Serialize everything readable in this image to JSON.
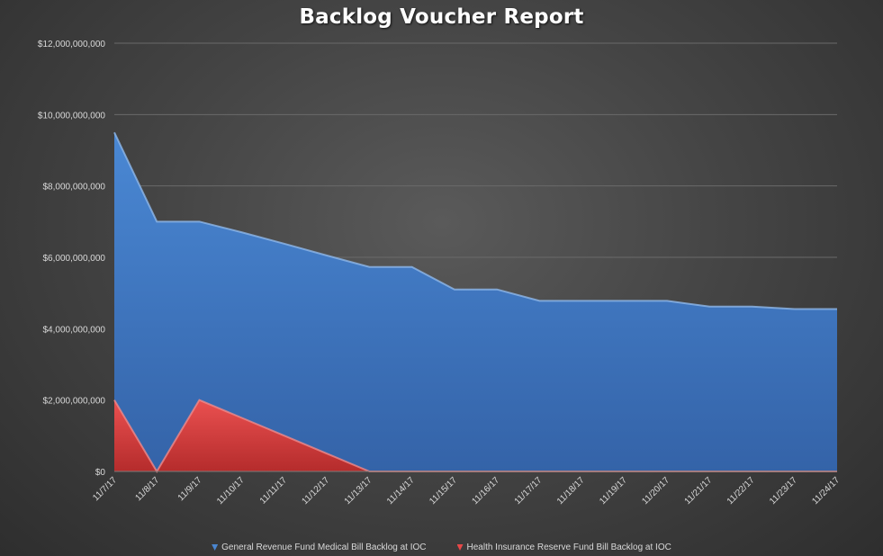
{
  "colors": {
    "series1": "#4a86d0",
    "series1_dark": "#3566ad",
    "series2": "#e84848",
    "series2_dark": "#b63030",
    "grid": "#6a6a6a",
    "text": "#d9d9d9"
  },
  "chart_data": {
    "type": "area",
    "title": "Backlog Voucher Report",
    "xlabel": "",
    "ylabel": "",
    "x": [
      "11/7/17",
      "11/8/17",
      "11/9/17",
      "11/10/17",
      "11/11/17",
      "11/12/17",
      "11/13/17",
      "11/14/17",
      "11/15/17",
      "11/16/17",
      "11/17/17",
      "11/18/17",
      "11/19/17",
      "11/20/17",
      "11/21/17",
      "11/22/17",
      "11/23/17",
      "11/24/17"
    ],
    "ylim": [
      0,
      12000000000
    ],
    "yticks": [
      0,
      2000000000,
      4000000000,
      6000000000,
      8000000000,
      10000000000,
      12000000000
    ],
    "ytick_labels": [
      "$0",
      "$2,000,000,000",
      "$4,000,000,000",
      "$6,000,000,000",
      "$8,000,000,000",
      "$10,000,000,000",
      "$12,000,000,000"
    ],
    "grid": true,
    "legend_position": "bottom",
    "series": [
      {
        "name": "General Revenue Fund Medical Bill Backlog at IOC",
        "values": [
          9500000000,
          7000000000,
          7000000000,
          6700000000,
          6380000000,
          6050000000,
          5730000000,
          5730000000,
          5100000000,
          5100000000,
          4780000000,
          4780000000,
          4780000000,
          4780000000,
          4620000000,
          4620000000,
          4550000000,
          4550000000
        ]
      },
      {
        "name": "Health Insurance Reserve Fund Bill Backlog at IOC",
        "values": [
          2000000000,
          0,
          2000000000,
          1500000000,
          1000000000,
          500000000,
          0,
          0,
          0,
          0,
          0,
          0,
          0,
          0,
          0,
          0,
          0,
          0
        ]
      }
    ]
  }
}
